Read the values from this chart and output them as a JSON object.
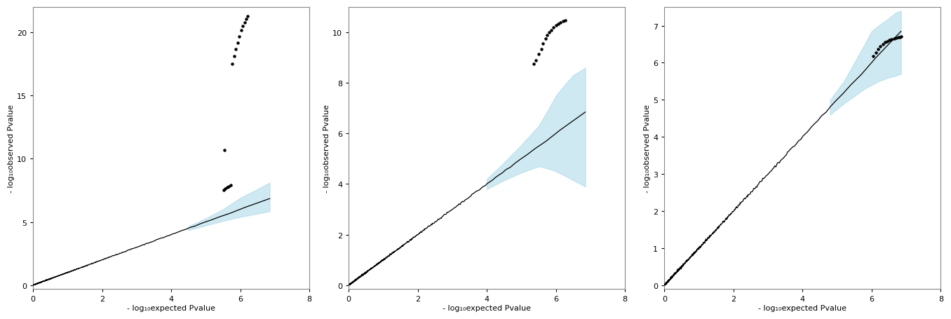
{
  "plots": [
    {
      "xlabel": "- log₁₀expected Pvalue",
      "ylabel": "- log₁₀observed Pvalue",
      "xlim": [
        0,
        8
      ],
      "ylim": [
        -0.3,
        22
      ],
      "yticks": [
        0,
        5,
        10,
        15,
        20
      ],
      "xticks": [
        0,
        2,
        4,
        6,
        8
      ],
      "n_snps": 700,
      "max_expected": 6.85,
      "ci_start_x": 4.5,
      "ci_x": [
        4.5,
        5.0,
        5.5,
        6.0,
        6.5,
        6.85
      ],
      "ci_lower": [
        4.35,
        4.72,
        5.08,
        5.4,
        5.65,
        5.85
      ],
      "ci_upper": [
        4.65,
        5.28,
        6.0,
        6.9,
        7.6,
        8.1
      ],
      "outlier_clusters": [
        {
          "x": [
            5.52,
            5.57,
            5.62,
            5.67,
            5.72
          ],
          "y": [
            7.5,
            7.65,
            7.75,
            7.8,
            7.9
          ]
        },
        {
          "x": [
            5.77,
            5.82,
            5.87,
            5.92,
            5.97,
            6.02,
            6.07,
            6.12,
            6.17,
            6.22
          ],
          "y": [
            17.5,
            18.1,
            18.7,
            19.2,
            19.7,
            20.2,
            20.5,
            20.8,
            21.05,
            21.3
          ]
        }
      ],
      "single_outlier_x": [
        5.55
      ],
      "single_outlier_y": [
        10.7
      ]
    },
    {
      "xlabel": "- log₁₀expected Pvalue",
      "ylabel": "- log₁₀observed Pvalue",
      "xlim": [
        0,
        8
      ],
      "ylim": [
        -0.15,
        11
      ],
      "yticks": [
        0,
        2,
        4,
        6,
        8,
        10
      ],
      "xticks": [
        0,
        2,
        4,
        6,
        8
      ],
      "n_snps": 700,
      "max_expected": 6.85,
      "ci_start_x": 4.0,
      "ci_x": [
        4.0,
        4.5,
        5.0,
        5.5,
        5.8,
        6.0,
        6.3,
        6.5,
        6.85
      ],
      "ci_lower": [
        3.8,
        4.15,
        4.45,
        4.7,
        4.6,
        4.5,
        4.3,
        4.15,
        3.9
      ],
      "ci_upper": [
        4.2,
        4.85,
        5.55,
        6.3,
        7.0,
        7.5,
        8.0,
        8.3,
        8.6
      ],
      "outlier_clusters": [
        {
          "x": [
            5.35,
            5.42,
            5.5,
            5.57,
            5.63,
            5.7,
            5.75,
            5.8,
            5.87,
            5.93,
            6.0,
            6.07,
            6.13,
            6.2,
            6.27
          ],
          "y": [
            8.75,
            8.9,
            9.15,
            9.35,
            9.55,
            9.75,
            9.88,
            10.0,
            10.1,
            10.2,
            10.28,
            10.35,
            10.4,
            10.44,
            10.48
          ]
        }
      ],
      "single_outlier_x": [],
      "single_outlier_y": []
    },
    {
      "xlabel": "- log₁₀expected Pvalue",
      "ylabel": "- log₁₀observed Pvalue",
      "xlim": [
        0,
        8
      ],
      "ylim": [
        -0.1,
        7.5
      ],
      "yticks": [
        0,
        1,
        2,
        3,
        4,
        5,
        6,
        7
      ],
      "xticks": [
        0,
        2,
        4,
        6,
        8
      ],
      "n_snps": 700,
      "max_expected": 6.85,
      "ci_start_x": 4.8,
      "ci_x": [
        4.8,
        5.2,
        5.5,
        5.8,
        6.0,
        6.2,
        6.5,
        6.7,
        6.85
      ],
      "ci_lower": [
        4.6,
        4.9,
        5.1,
        5.3,
        5.4,
        5.5,
        5.6,
        5.65,
        5.7
      ],
      "ci_upper": [
        5.0,
        5.5,
        6.0,
        6.5,
        6.85,
        7.0,
        7.2,
        7.35,
        7.4
      ],
      "outlier_clusters": [
        {
          "x": [
            6.05,
            6.12,
            6.18,
            6.25,
            6.32,
            6.38,
            6.45,
            6.52,
            6.58,
            6.65,
            6.72,
            6.78,
            6.82,
            6.85
          ],
          "y": [
            6.18,
            6.28,
            6.36,
            6.44,
            6.5,
            6.55,
            6.58,
            6.61,
            6.63,
            6.65,
            6.67,
            6.68,
            6.69,
            6.7
          ]
        }
      ],
      "single_outlier_x": [],
      "single_outlier_y": []
    }
  ],
  "point_color": "#000000",
  "ci_color": "#a8d8e8",
  "ci_alpha": 0.55,
  "line_width": 0.9,
  "outlier_point_size": 5,
  "background_color": "#ffffff"
}
